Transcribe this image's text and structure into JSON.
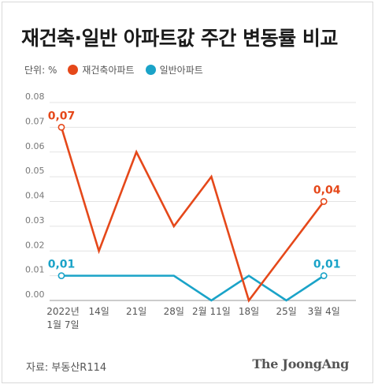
{
  "title": "재건축·일반 아파트값 주간 변동률 비교",
  "unit_label": "단위: %",
  "source": "자료: 부동산R114",
  "brand": "The JoongAng",
  "colors": {
    "series1": "#e5481a",
    "series2": "#1aa3c8"
  },
  "chart_data": {
    "type": "line",
    "categories": [
      "2022년 1월 7일",
      "14일",
      "21일",
      "28일",
      "2월 11일",
      "18일",
      "25일",
      "3월 4일"
    ],
    "category_lines": [
      [
        "2022년",
        "1월 7일"
      ],
      [
        "14일"
      ],
      [
        "21일"
      ],
      [
        "28일"
      ],
      [
        "2월 11일"
      ],
      [
        "18일"
      ],
      [
        "25일"
      ],
      [
        "3월 4일"
      ]
    ],
    "ylim": [
      0,
      0.08
    ],
    "yticks": [
      0,
      0.01,
      0.02,
      0.03,
      0.04,
      0.05,
      0.06,
      0.07,
      0.08
    ],
    "ytick_labels": [
      "0.00",
      "0.01",
      "0.02",
      "0.03",
      "0.04",
      "0.05",
      "0.06",
      "0.07",
      "0.08"
    ],
    "grid": true,
    "legend_position": "top-left",
    "series": [
      {
        "name": "재건축아파트",
        "color": "#e5481a",
        "values": [
          0.07,
          0.02,
          0.06,
          0.03,
          0.05,
          0.0,
          0.02,
          0.04
        ],
        "labels": [
          {
            "index": 0,
            "text": "0,07"
          },
          {
            "index": 7,
            "text": "0,04"
          }
        ]
      },
      {
        "name": "일반아파트",
        "color": "#1aa3c8",
        "values": [
          0.01,
          0.01,
          0.01,
          0.01,
          0.0,
          0.01,
          0.0,
          0.01
        ],
        "labels": [
          {
            "index": 0,
            "text": "0,01"
          },
          {
            "index": 7,
            "text": "0,01"
          }
        ]
      }
    ]
  }
}
